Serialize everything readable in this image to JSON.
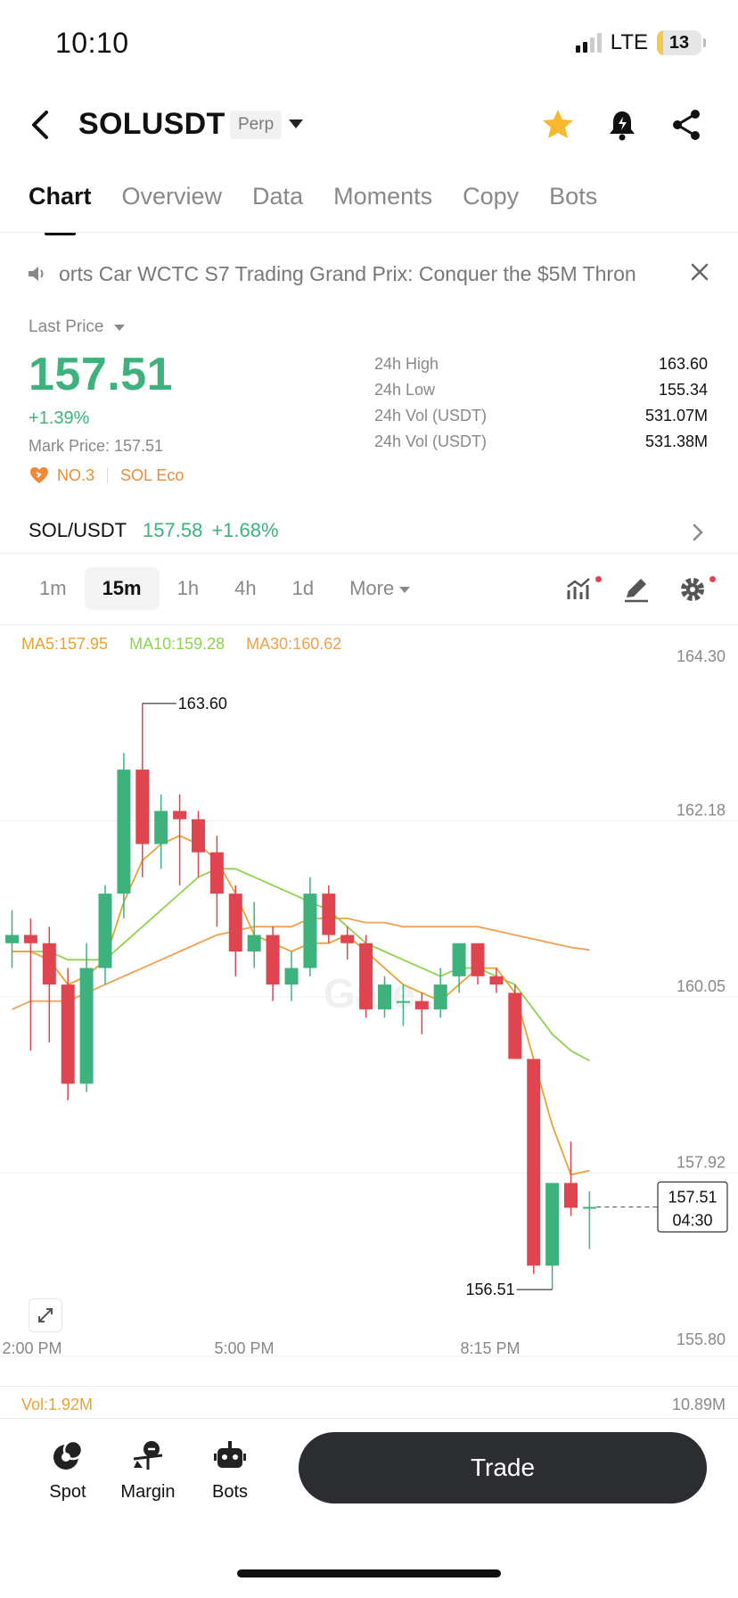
{
  "status_bar": {
    "time": "10:10",
    "network": "LTE",
    "battery": "13",
    "battery_level": 0.13
  },
  "header": {
    "title": "SOLUSDT",
    "contract_type": "Perp",
    "favorite_icon": "star-icon",
    "alert_icon": "bell-icon",
    "share_icon": "share-icon"
  },
  "tabs": [
    {
      "label": "Chart",
      "active": true
    },
    {
      "label": "Overview"
    },
    {
      "label": "Data"
    },
    {
      "label": "Moments"
    },
    {
      "label": "Copy"
    },
    {
      "label": "Bots"
    }
  ],
  "ticker": {
    "text": "orts Car    WCTC S7 Trading Grand Prix: Conquer the $5M Thron",
    "icon": "speaker-icon"
  },
  "price": {
    "label": "Last Price",
    "last": "157.51",
    "change_pct": "+1.39%",
    "mark": "Mark Price: 157.51",
    "badge_rank": "NO.3",
    "badge_eco": "SOL Eco"
  },
  "stats": [
    {
      "label": "24h High",
      "value": "163.60"
    },
    {
      "label": "24h Low",
      "value": "155.34"
    },
    {
      "label": "24h Vol (USDT)",
      "value": "531.07M"
    },
    {
      "label": "24h Vol (USDT)",
      "value": "531.38M"
    }
  ],
  "spot_pair": {
    "pair": "SOL/USDT",
    "price": "157.58",
    "change": "+1.68%"
  },
  "timeframes": [
    {
      "label": "1m"
    },
    {
      "label": "15m",
      "active": true
    },
    {
      "label": "1h"
    },
    {
      "label": "4h"
    },
    {
      "label": "1d"
    },
    {
      "label": "More"
    }
  ],
  "ma_legend": {
    "ma5": "MA5:157.95",
    "ma10": "MA10:159.28",
    "ma30": "MA30:160.62"
  },
  "chart_data": {
    "type": "candlestick",
    "y_ticks": [
      "164.30",
      "162.18",
      "160.05",
      "157.92",
      "155.80"
    ],
    "ylim": [
      155.8,
      164.3
    ],
    "x_ticks": [
      "2:00 PM",
      "5:00 PM",
      "8:15 PM"
    ],
    "high_marker": "163.60",
    "low_marker": "156.51",
    "current_price": "157.51",
    "countdown": "04:30",
    "watermark": "Gate",
    "candles": [
      {
        "o": 160.7,
        "h": 161.1,
        "l": 160.4,
        "c": 160.8
      },
      {
        "o": 160.8,
        "h": 161.0,
        "l": 159.4,
        "c": 160.7
      },
      {
        "o": 160.7,
        "h": 160.9,
        "l": 159.5,
        "c": 160.2
      },
      {
        "o": 160.2,
        "h": 160.4,
        "l": 158.8,
        "c": 159.0
      },
      {
        "o": 159.0,
        "h": 160.7,
        "l": 158.9,
        "c": 160.4
      },
      {
        "o": 160.4,
        "h": 161.4,
        "l": 160.2,
        "c": 161.3
      },
      {
        "o": 161.3,
        "h": 163.0,
        "l": 161.0,
        "c": 162.8
      },
      {
        "o": 162.8,
        "h": 163.6,
        "l": 161.5,
        "c": 161.9
      },
      {
        "o": 161.9,
        "h": 162.5,
        "l": 161.6,
        "c": 162.3
      },
      {
        "o": 162.3,
        "h": 162.5,
        "l": 161.4,
        "c": 162.2
      },
      {
        "o": 162.2,
        "h": 162.3,
        "l": 161.5,
        "c": 161.8
      },
      {
        "o": 161.8,
        "h": 162.0,
        "l": 160.9,
        "c": 161.3
      },
      {
        "o": 161.3,
        "h": 161.4,
        "l": 160.3,
        "c": 160.6
      },
      {
        "o": 160.6,
        "h": 161.2,
        "l": 160.4,
        "c": 160.8
      },
      {
        "o": 160.8,
        "h": 160.9,
        "l": 160.0,
        "c": 160.2
      },
      {
        "o": 160.2,
        "h": 160.6,
        "l": 160.0,
        "c": 160.4
      },
      {
        "o": 160.4,
        "h": 161.5,
        "l": 160.3,
        "c": 161.3
      },
      {
        "o": 161.3,
        "h": 161.4,
        "l": 160.7,
        "c": 160.8
      },
      {
        "o": 160.8,
        "h": 160.9,
        "l": 160.5,
        "c": 160.7
      },
      {
        "o": 160.7,
        "h": 160.8,
        "l": 159.8,
        "c": 159.9
      },
      {
        "o": 159.9,
        "h": 160.3,
        "l": 159.8,
        "c": 160.2
      },
      {
        "o": 160.0,
        "h": 160.2,
        "l": 159.7,
        "c": 160.0
      },
      {
        "o": 160.0,
        "h": 160.1,
        "l": 159.6,
        "c": 159.9
      },
      {
        "o": 159.9,
        "h": 160.4,
        "l": 159.8,
        "c": 160.2
      },
      {
        "o": 160.3,
        "h": 160.7,
        "l": 160.1,
        "c": 160.7
      },
      {
        "o": 160.7,
        "h": 160.7,
        "l": 160.2,
        "c": 160.3
      },
      {
        "o": 160.3,
        "h": 160.4,
        "l": 160.1,
        "c": 160.2
      },
      {
        "o": 160.1,
        "h": 160.2,
        "l": 159.3,
        "c": 159.3
      },
      {
        "o": 159.3,
        "h": 159.3,
        "l": 156.7,
        "c": 156.8
      },
      {
        "o": 156.8,
        "h": 157.8,
        "l": 156.51,
        "c": 157.8
      },
      {
        "o": 157.8,
        "h": 158.3,
        "l": 157.4,
        "c": 157.5
      },
      {
        "o": 157.5,
        "h": 157.7,
        "l": 157.0,
        "c": 157.51
      }
    ],
    "ma5": [
      160.6,
      160.6,
      160.5,
      160.2,
      160.3,
      160.5,
      161.2,
      161.7,
      161.9,
      162.0,
      161.9,
      161.7,
      161.3,
      160.8,
      160.7,
      160.6,
      160.7,
      160.7,
      160.8,
      160.6,
      160.4,
      160.2,
      160.1,
      160.0,
      160.2,
      160.4,
      160.4,
      160.1,
      159.3,
      158.5,
      157.9,
      157.95
    ],
    "ma10": [
      160.6,
      160.6,
      160.6,
      160.5,
      160.5,
      160.5,
      160.7,
      160.9,
      161.1,
      161.3,
      161.5,
      161.6,
      161.6,
      161.5,
      161.4,
      161.3,
      161.2,
      161.1,
      160.9,
      160.7,
      160.6,
      160.5,
      160.4,
      160.3,
      160.4,
      160.4,
      160.3,
      160.2,
      159.9,
      159.6,
      159.4,
      159.28
    ],
    "ma30": [
      159.9,
      160.0,
      160.0,
      160.0,
      160.1,
      160.2,
      160.3,
      160.4,
      160.5,
      160.6,
      160.7,
      160.8,
      160.85,
      160.9,
      160.9,
      160.9,
      161.0,
      161.0,
      161.0,
      160.95,
      160.95,
      160.9,
      160.9,
      160.9,
      160.9,
      160.9,
      160.85,
      160.8,
      160.75,
      160.7,
      160.65,
      160.62
    ]
  },
  "volume": {
    "label": "Vol:1.92M",
    "max": "10.89M"
  },
  "bottom_nav": [
    {
      "label": "Spot"
    },
    {
      "label": "Margin"
    },
    {
      "label": "Bots"
    }
  ],
  "trade_label": "Trade",
  "colors": {
    "up": "#3db27c",
    "down": "#e0454f",
    "ma5": "#e9a234",
    "ma10": "#8fd24e",
    "ma30": "#f0a050"
  }
}
